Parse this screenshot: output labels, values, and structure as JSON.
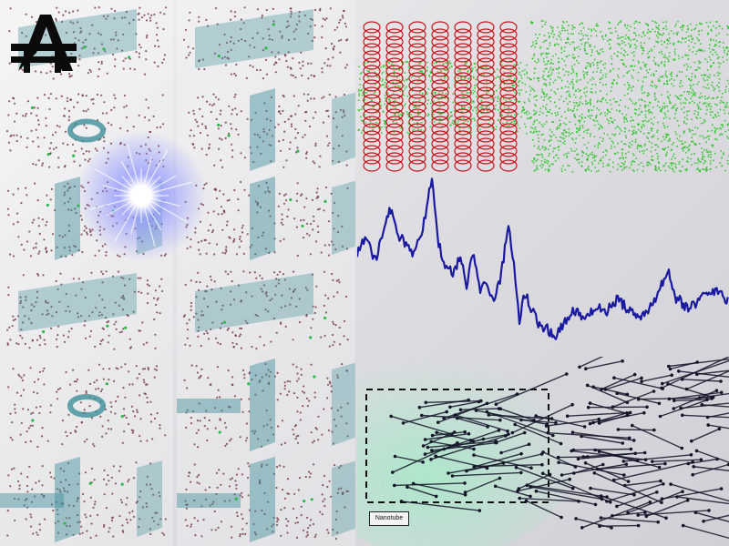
{
  "logo": {
    "icon": "stylized-letter-a-logo",
    "color": "#0b0b0b"
  },
  "simulation_tiles": {
    "count": 12,
    "columns": 2,
    "point_color": "#6b2a35",
    "sheet_color": "#3f8e98",
    "marker_color": "#2fb84a"
  },
  "coil_panel": {
    "coil_color": "#c8141c",
    "fill_color": "#1ec41a"
  },
  "wave_panel": {
    "line_color": "#1a1aa0"
  },
  "stick_panel": {
    "line_color": "#15152a",
    "glow_color": "#a8e8c8",
    "legend": "Nanotube"
  },
  "flare": {
    "color": "#8890ff"
  }
}
